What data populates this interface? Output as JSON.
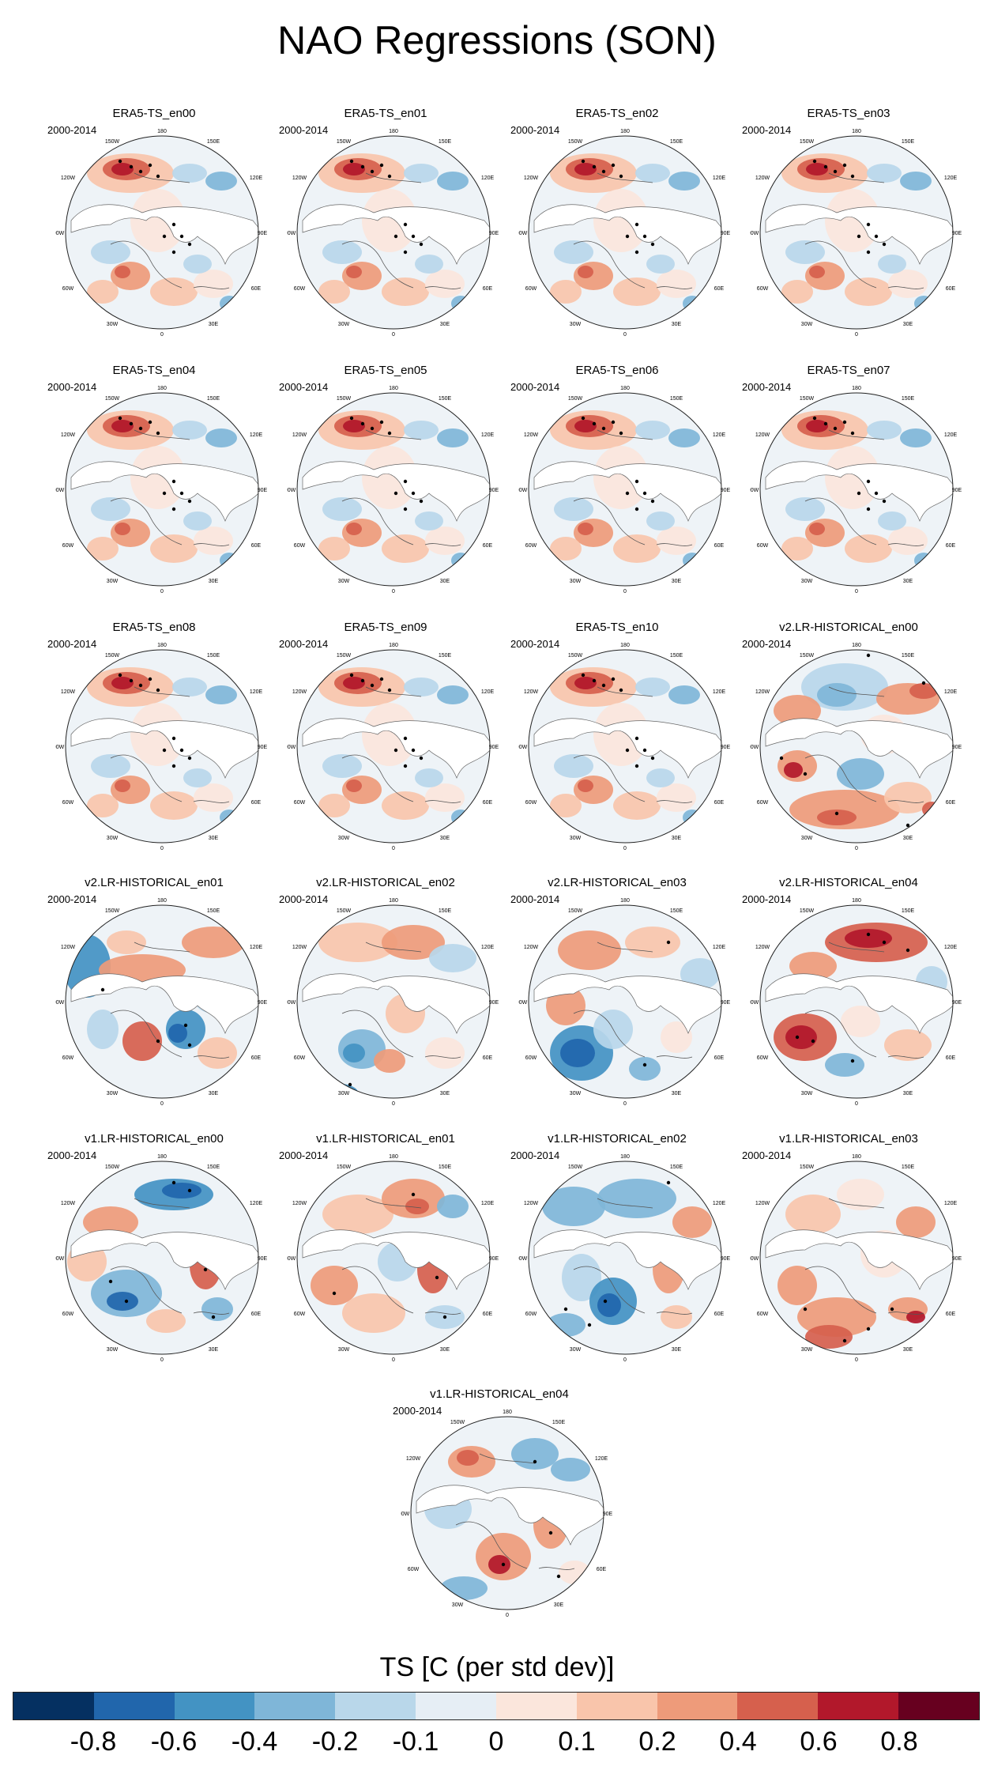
{
  "title": "NAO Regressions (SON)",
  "period": "2000-2014",
  "lon_labels": {
    "top": "180",
    "tl": "150W",
    "tr": "150E",
    "ul": "120W",
    "ur": "120E",
    "ml": "90W",
    "mr": "90E",
    "ll": "60W",
    "lr": "60E",
    "bl": "30W",
    "br": "30E",
    "bottom": "0"
  },
  "panels": [
    {
      "name": "ERA5-TS_en00",
      "pattern": "era5"
    },
    {
      "name": "ERA5-TS_en01",
      "pattern": "era5"
    },
    {
      "name": "ERA5-TS_en02",
      "pattern": "era5"
    },
    {
      "name": "ERA5-TS_en03",
      "pattern": "era5"
    },
    {
      "name": "ERA5-TS_en04",
      "pattern": "era5"
    },
    {
      "name": "ERA5-TS_en05",
      "pattern": "era5"
    },
    {
      "name": "ERA5-TS_en06",
      "pattern": "era5"
    },
    {
      "name": "ERA5-TS_en07",
      "pattern": "era5"
    },
    {
      "name": "ERA5-TS_en08",
      "pattern": "era5"
    },
    {
      "name": "ERA5-TS_en09",
      "pattern": "era5"
    },
    {
      "name": "ERA5-TS_en10",
      "pattern": "era5"
    },
    {
      "name": "v2.LR-HISTORICAL_en00",
      "pattern": "v2_en00"
    },
    {
      "name": "v2.LR-HISTORICAL_en01",
      "pattern": "v2_en01"
    },
    {
      "name": "v2.LR-HISTORICAL_en02",
      "pattern": "v2_en02"
    },
    {
      "name": "v2.LR-HISTORICAL_en03",
      "pattern": "v2_en03"
    },
    {
      "name": "v2.LR-HISTORICAL_en04",
      "pattern": "v2_en04"
    },
    {
      "name": "v1.LR-HISTORICAL_en00",
      "pattern": "v1_en00"
    },
    {
      "name": "v1.LR-HISTORICAL_en01",
      "pattern": "v1_en01"
    },
    {
      "name": "v1.LR-HISTORICAL_en02",
      "pattern": "v1_en02"
    },
    {
      "name": "v1.LR-HISTORICAL_en03",
      "pattern": "v1_en03"
    },
    {
      "name": "v1.LR-HISTORICAL_en04",
      "pattern": "v1_en04"
    }
  ],
  "colorbar": {
    "title": "TS [C (per std dev)]",
    "colors": [
      "#053061",
      "#2166ac",
      "#4393c3",
      "#7fb6d8",
      "#b9d7ea",
      "#e6eef5",
      "#fbe6dc",
      "#f9c5ab",
      "#ee9b7a",
      "#d6604d",
      "#b2182b",
      "#67001f"
    ],
    "tick_labels": [
      "-0.8",
      "-0.6",
      "-0.4",
      "-0.2",
      "-0.1",
      "0",
      "0.1",
      "0.2",
      "0.4",
      "0.6",
      "0.8"
    ]
  }
}
